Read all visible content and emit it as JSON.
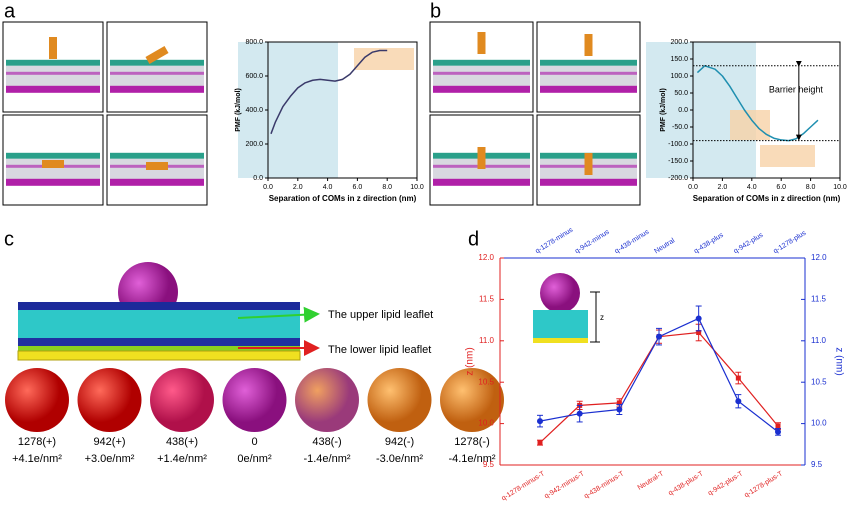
{
  "panel_labels": [
    "a",
    "b",
    "c",
    "d"
  ],
  "leaflet_labels": [
    "The upper lipid leaflet",
    "The lower lipid leaflet"
  ],
  "particles": [
    {
      "charge": "1278(+)",
      "density": "+4.1e/nm²"
    },
    {
      "charge": "942(+)",
      "density": "+3.0e/nm²"
    },
    {
      "charge": "438(+)",
      "density": "+1.4e/nm²"
    },
    {
      "charge": "0",
      "density": "0e/nm²"
    },
    {
      "charge": "438(-)",
      "density": "-1.4e/nm²"
    },
    {
      "charge": "942(-)",
      "density": "-3.0e/nm²"
    },
    {
      "charge": "1278(-)",
      "density": "-4.1e/nm²"
    }
  ],
  "chart_data": [
    {
      "type": "line",
      "xlabel": "Separation of COMs in z direction (nm)",
      "ylabel": "PMF (kJ/mol)",
      "x": [
        0.2,
        0.5,
        1,
        1.5,
        2,
        2.5,
        3,
        3.5,
        4,
        4.5,
        5,
        5.5,
        6,
        6.5,
        7,
        7.5,
        8
      ],
      "values": [
        260,
        330,
        420,
        480,
        530,
        560,
        575,
        580,
        575,
        570,
        580,
        610,
        660,
        710,
        740,
        750,
        750
      ],
      "color": "#3a3a6a",
      "xlim": [
        0,
        10
      ],
      "xticks": [
        {
          "value": 0,
          "label": "0.0"
        },
        {
          "value": 2,
          "label": "2.0"
        },
        {
          "value": 4,
          "label": "4.0"
        },
        {
          "value": 6,
          "label": "6.0"
        },
        {
          "value": 8,
          "label": "8.0"
        },
        {
          "value": 10,
          "label": "10.0"
        }
      ],
      "ylim": [
        0,
        800
      ],
      "yticks": [
        {
          "value": 0,
          "label": "0.0"
        },
        {
          "value": 200,
          "label": "200.0"
        },
        {
          "value": 400,
          "label": "400.0"
        },
        {
          "value": 600,
          "label": "600.0"
        },
        {
          "value": 800,
          "label": "800.0"
        }
      ]
    },
    {
      "type": "line",
      "xlabel": "Separation of COMs in z direction (nm)",
      "ylabel": "PMF (kJ/mol)",
      "x": [
        0.3,
        0.8,
        1.5,
        2,
        2.5,
        3,
        3.5,
        4,
        4.5,
        5,
        5.5,
        6,
        6.5,
        7,
        7.5,
        8,
        8.5
      ],
      "values": [
        110,
        130,
        120,
        100,
        70,
        35,
        0,
        -30,
        -55,
        -72,
        -83,
        -88,
        -90,
        -85,
        -70,
        -50,
        -30
      ],
      "color": "#1f8fb0",
      "xlim": [
        0,
        10
      ],
      "xticks": [
        {
          "value": 0,
          "label": "0.0"
        },
        {
          "value": 2,
          "label": "2.0"
        },
        {
          "value": 4,
          "label": "4.0"
        },
        {
          "value": 6,
          "label": "6.0"
        },
        {
          "value": 8,
          "label": "8.0"
        },
        {
          "value": 10,
          "label": "10.0"
        }
      ],
      "ylim": [
        -200,
        200
      ],
      "yticks": [
        {
          "value": -200,
          "label": "-200.0"
        },
        {
          "value": -150,
          "label": "-150.0"
        },
        {
          "value": -100,
          "label": "-100.0"
        },
        {
          "value": -50,
          "label": "-50.0"
        },
        {
          "value": 0,
          "label": "0.0"
        },
        {
          "value": 50,
          "label": "50.0"
        },
        {
          "value": 100,
          "label": "100.0"
        },
        {
          "value": 150,
          "label": "150.0"
        },
        {
          "value": 200,
          "label": "200.0"
        }
      ],
      "reference_lines": [
        130,
        -90
      ],
      "annotations": [
        "Barrier height"
      ]
    },
    {
      "type": "errorline",
      "ylabel": "z (nm)",
      "y2label": "z (nm)",
      "categories": [
        "q-1278-minus-T",
        "q-942-minus-T",
        "q-438-minus-T",
        "Neutral-T",
        "q-438-plus-T",
        "q-942-plus-T",
        "q-1278-plus-T"
      ],
      "top_categories": [
        "q-1278-minus",
        "q-942-minus",
        "q-438-minus",
        "Neutral",
        "q-438-plus",
        "q-942-plus",
        "q-1278-plus"
      ],
      "series": [
        {
          "color": "#e02020",
          "values": [
            9.77,
            10.22,
            10.25,
            11.05,
            11.1,
            10.55,
            9.97
          ],
          "errors": [
            0.03,
            0.05,
            0.05,
            0.08,
            0.1,
            0.07,
            0.04
          ]
        },
        {
          "color": "#1a2fd0",
          "axis": "y2",
          "values": [
            10.03,
            10.12,
            10.17,
            11.05,
            11.27,
            10.27,
            9.9
          ],
          "errors": [
            0.07,
            0.1,
            0.06,
            0.1,
            0.15,
            0.08,
            0.04
          ]
        }
      ],
      "ylim": [
        9.5,
        12
      ],
      "yticks": [
        9.5,
        {
          "value": 10,
          "label": "10.0"
        },
        10.5,
        {
          "value": 11,
          "label": "11.0"
        },
        11.5,
        {
          "value": 12,
          "label": "12.0"
        }
      ],
      "y2lim": [
        9.5,
        12
      ],
      "y2ticks": [
        9.5,
        {
          "value": 10,
          "label": "10.0"
        },
        10.5,
        {
          "value": 11,
          "label": "11.0"
        },
        11.5,
        {
          "value": 12,
          "label": "12.0"
        }
      ],
      "annotations": [
        "z"
      ]
    }
  ]
}
